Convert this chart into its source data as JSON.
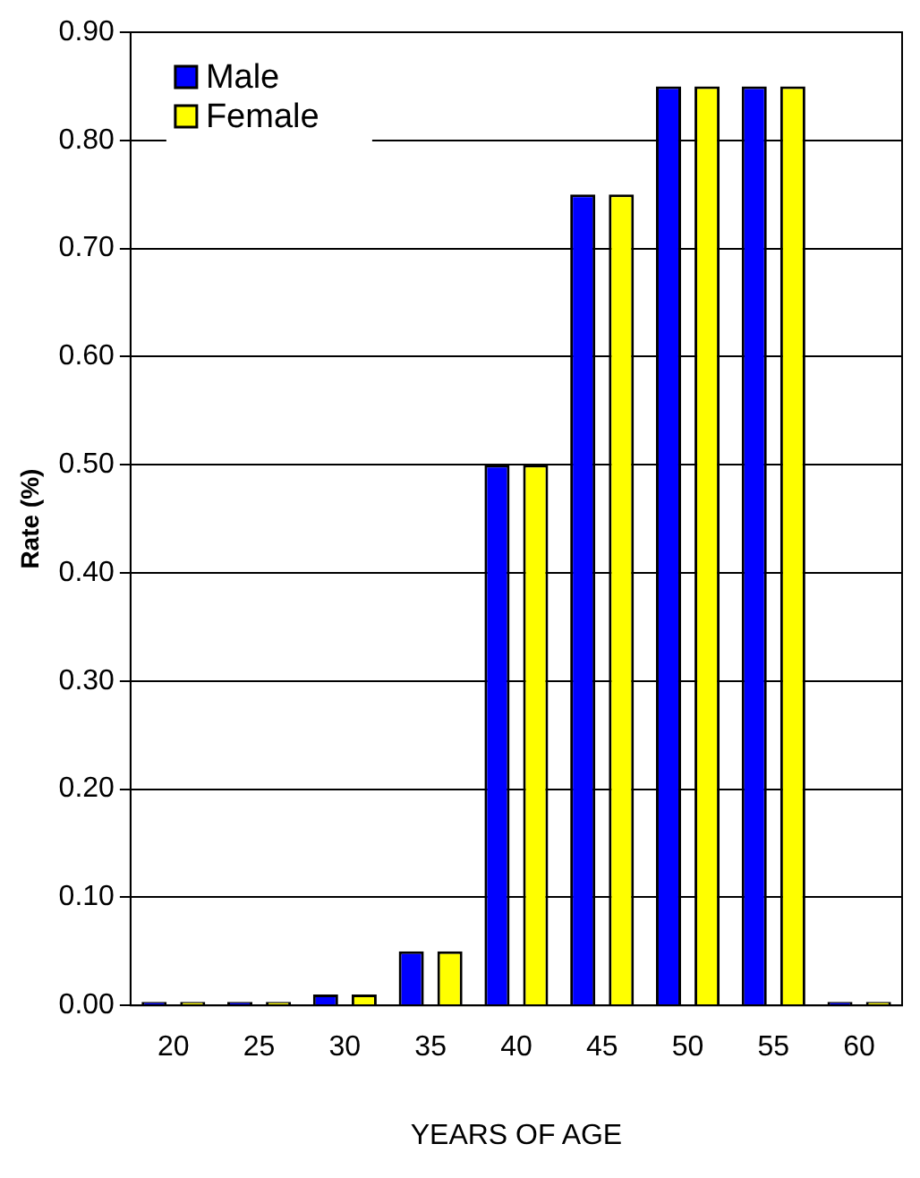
{
  "chart_data": {
    "type": "bar",
    "xlabel": "YEARS OF AGE",
    "ylabel": "Rate (%)",
    "categories": [
      "20",
      "25",
      "30",
      "35",
      "40",
      "45",
      "50",
      "55",
      "60"
    ],
    "series": [
      {
        "name": "Male",
        "color": "#0000ff",
        "values": [
          0,
          0,
          0.01,
          0.05,
          0.5,
          0.75,
          0.85,
          0.85,
          0
        ]
      },
      {
        "name": "Female",
        "color": "#ffff00",
        "values": [
          0,
          0,
          0.01,
          0.05,
          0.5,
          0.75,
          0.85,
          0.85,
          0
        ]
      }
    ],
    "ylim": [
      0,
      0.9
    ],
    "yticks": [
      {
        "value": 0,
        "label": "0.00"
      },
      {
        "value": 0.1,
        "label": "0.10"
      },
      {
        "value": 0.2,
        "label": "0.20"
      },
      {
        "value": 0.3,
        "label": "0.30"
      },
      {
        "value": 0.4,
        "label": "0.40"
      },
      {
        "value": 0.5,
        "label": "0.50"
      },
      {
        "value": 0.6,
        "label": "0.60"
      },
      {
        "value": 0.7,
        "label": "0.70"
      },
      {
        "value": 0.8,
        "label": "0.80"
      },
      {
        "value": 0.9,
        "label": "0.90"
      }
    ],
    "grid": "y",
    "legend": "top left"
  }
}
